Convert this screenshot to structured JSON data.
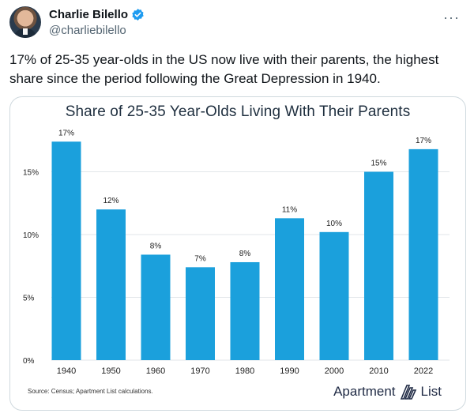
{
  "tweet": {
    "author_name": "Charlie Bilello",
    "author_handle": "@charliebilello",
    "text": "17% of 25-35 year-olds in the US now live with their parents, the highest share since the period following the Great Depression in 1940.",
    "more_icon": "more-horizontal-icon",
    "verified_icon": "verified-badge-icon"
  },
  "card": {
    "source": "Source: Census; Apartment List calculations.",
    "brand_left": "Apartment",
    "brand_right": "List",
    "brand_icon": "apartment-list-logo-icon"
  },
  "colors": {
    "bar": "#1ba0dc",
    "grid": "#e2e6ea",
    "axis_text": "#222222"
  },
  "chart_data": {
    "type": "bar",
    "title": "Share of 25-35 Year-Olds Living With Their Parents",
    "categories": [
      "1940",
      "1950",
      "1960",
      "1970",
      "1980",
      "1990",
      "2000",
      "2010",
      "2022"
    ],
    "values": [
      17.4,
      12.0,
      8.4,
      7.4,
      7.8,
      11.3,
      10.2,
      15.0,
      16.8
    ],
    "data_labels": [
      "17%",
      "12%",
      "8%",
      "7%",
      "8%",
      "11%",
      "10%",
      "15%",
      "17%"
    ],
    "yticks": [
      0,
      5,
      10,
      15
    ],
    "ytick_labels": [
      "0%",
      "5%",
      "10%",
      "15%"
    ],
    "ylim": [
      0,
      20
    ],
    "xlabel": "",
    "ylabel": "",
    "grid": true,
    "legend": "none"
  }
}
